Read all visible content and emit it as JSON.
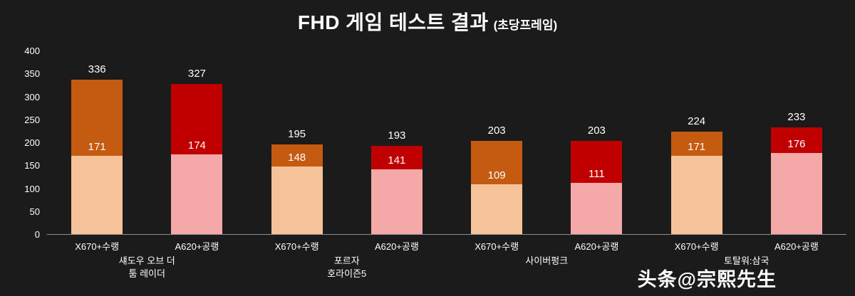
{
  "title": "FHD 게임 테스트 결과",
  "subtitle": "(초당프레임)",
  "watermark": "头条@宗熙先生",
  "colors": {
    "background": "#1b1b1b",
    "axis_line": "#8f8f8f",
    "text": "#ffffff"
  },
  "chart_data": {
    "type": "bar",
    "stacked": true,
    "title": "FHD 게임 테스트 결과 (초당프레임)",
    "xlabel": "",
    "ylabel": "",
    "ylim": [
      0,
      400
    ],
    "yticks": [
      0,
      50,
      100,
      150,
      200,
      250,
      300,
      350,
      400
    ],
    "grid": false,
    "legend": "none",
    "series_styles": [
      {
        "name": "X670+수랭",
        "lower_color": "#f6c29a",
        "upper_color": "#c55a11"
      },
      {
        "name": "A620+공랭",
        "lower_color": "#f5a8a8",
        "upper_color": "#c00000"
      }
    ],
    "groups": [
      {
        "name_lines": [
          "섀도우 오브 더",
          "툼 레이더"
        ],
        "bars": [
          {
            "label": "X670+수랭",
            "total": 336,
            "lower": 171
          },
          {
            "label": "A620+공랭",
            "total": 327,
            "lower": 174
          }
        ]
      },
      {
        "name_lines": [
          "포르자",
          "호라이즌5"
        ],
        "bars": [
          {
            "label": "X670+수랭",
            "total": 195,
            "lower": 148
          },
          {
            "label": "A620+공랭",
            "total": 193,
            "lower": 141
          }
        ]
      },
      {
        "name_lines": [
          "사이버펑크"
        ],
        "bars": [
          {
            "label": "X670+수랭",
            "total": 203,
            "lower": 109
          },
          {
            "label": "A620+공랭",
            "total": 203,
            "lower": 111
          }
        ]
      },
      {
        "name_lines": [
          "토탈워:삼국"
        ],
        "bars": [
          {
            "label": "X670+수랭",
            "total": 224,
            "lower": 171
          },
          {
            "label": "A620+공랭",
            "total": 233,
            "lower": 176
          }
        ]
      }
    ]
  }
}
